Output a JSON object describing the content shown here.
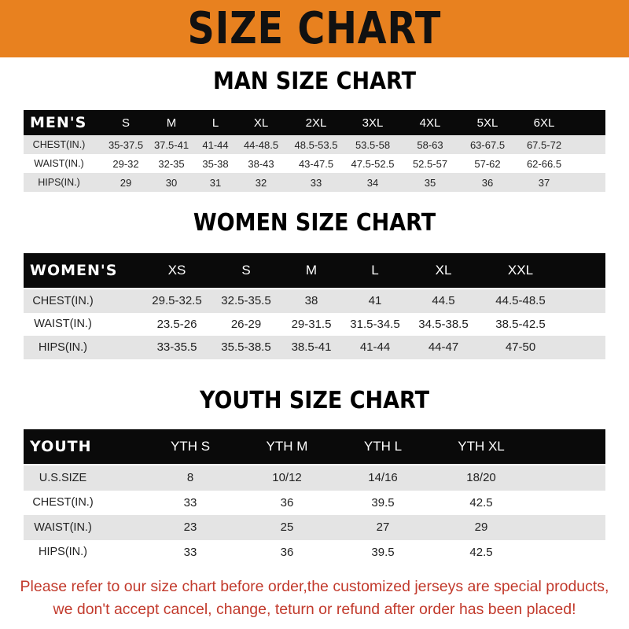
{
  "banner_title": "SIZE CHART",
  "men": {
    "title": "MAN SIZE CHART",
    "header": "MEN'S",
    "sizes": [
      "S",
      "M",
      "L",
      "XL",
      "2XL",
      "3XL",
      "4XL",
      "5XL",
      "6XL"
    ],
    "rows": [
      {
        "label": "CHEST(IN.)",
        "values": [
          "35-37.5",
          "37.5-41",
          "41-44",
          "44-48.5",
          "48.5-53.5",
          "53.5-58",
          "58-63",
          "63-67.5",
          "67.5-72"
        ]
      },
      {
        "label": "WAIST(IN.)",
        "values": [
          "29-32",
          "32-35",
          "35-38",
          "38-43",
          "43-47.5",
          "47.5-52.5",
          "52.5-57",
          "57-62",
          "62-66.5"
        ]
      },
      {
        "label": "HIPS(IN.)",
        "values": [
          "29",
          "30",
          "31",
          "32",
          "33",
          "34",
          "35",
          "36",
          "37"
        ]
      }
    ]
  },
  "women": {
    "title": "WOMEN SIZE CHART",
    "header": "WOMEN'S",
    "sizes": [
      "XS",
      "S",
      "M",
      "L",
      "XL",
      "XXL"
    ],
    "rows": [
      {
        "label": "CHEST(IN.)",
        "values": [
          "29.5-32.5",
          "32.5-35.5",
          "38",
          "41",
          "44.5",
          "44.5-48.5"
        ]
      },
      {
        "label": "WAIST(IN.)",
        "values": [
          "23.5-26",
          "26-29",
          "29-31.5",
          "31.5-34.5",
          "34.5-38.5",
          "38.5-42.5"
        ]
      },
      {
        "label": "HIPS(IN.)",
        "values": [
          "33-35.5",
          "35.5-38.5",
          "38.5-41",
          "41-44",
          "44-47",
          "47-50"
        ]
      }
    ]
  },
  "youth": {
    "title": "YOUTH SIZE CHART",
    "header": "YOUTH",
    "sizes": [
      "YTH S",
      "YTH M",
      "YTH L",
      "YTH XL"
    ],
    "rows": [
      {
        "label": "U.S.SIZE",
        "values": [
          "8",
          "10/12",
          "14/16",
          "18/20"
        ]
      },
      {
        "label": "CHEST(IN.)",
        "values": [
          "33",
          "36",
          "39.5",
          "42.5"
        ]
      },
      {
        "label": "WAIST(IN.)",
        "values": [
          "23",
          "25",
          "27",
          "29"
        ]
      },
      {
        "label": "HIPS(IN.)",
        "values": [
          "33",
          "36",
          "39.5",
          "42.5"
        ]
      }
    ]
  },
  "footer": {
    "line1": "Please refer to our size chart before order,the customized jerseys are special products,",
    "line2": "we don't accept cancel, change, teturn or refund after order has been placed!"
  },
  "colors": {
    "banner": "#e8811f",
    "header_row": "#0a0a0a",
    "alt_row": "#e4e4e4",
    "footer_text": "#c23a2c"
  }
}
